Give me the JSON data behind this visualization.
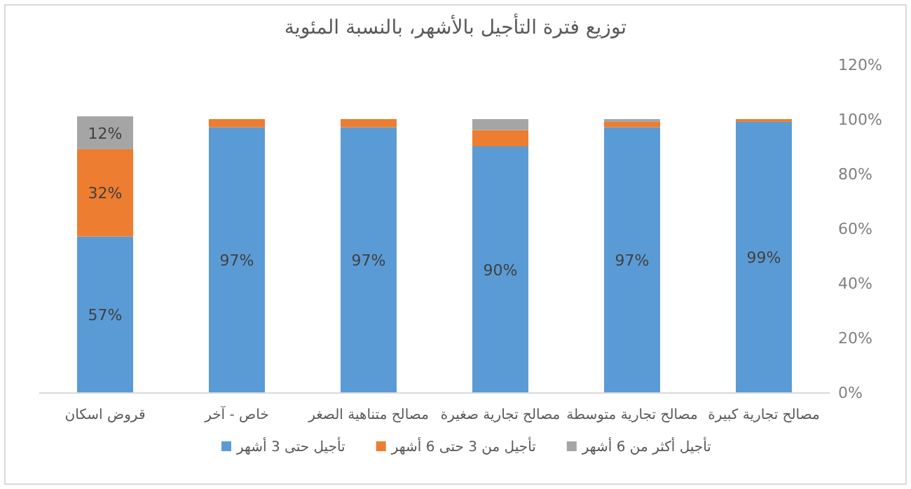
{
  "chart_data": {
    "type": "bar",
    "stacked": true,
    "title": "توزيع فترة التأجيل بالأشهر، بالنسبة المئوية",
    "categories": [
      "قروض اسكان",
      "خاص - آخر",
      "مصالح متناهية الصغر",
      "مصالح تجارية صغيرة",
      "مصالح تجارية متوسطة",
      "مصالح تجارية كبيرة"
    ],
    "series": [
      {
        "name": "تأجيل حتى 3 أشهر",
        "color": "#5b9bd5",
        "values": [
          57,
          97,
          97,
          90,
          97,
          99
        ],
        "value_labels": [
          "57%",
          "97%",
          "97%",
          "90%",
          "97%",
          "99%"
        ]
      },
      {
        "name": "تأجيل من 3 حتى 6 أشهر",
        "color": "#ed7d31",
        "values": [
          32,
          3,
          3,
          6,
          2,
          1
        ],
        "value_labels": [
          "32%",
          null,
          null,
          null,
          null,
          null
        ]
      },
      {
        "name": "تأجيل أكثر من 6 أشهر",
        "color": "#a5a5a5",
        "values": [
          12,
          0,
          0,
          4,
          1,
          0
        ],
        "value_labels": [
          "12%",
          null,
          null,
          null,
          null,
          null
        ]
      }
    ],
    "ylim": [
      0,
      120
    ],
    "yticks": [
      {
        "value": 0,
        "label": "0%"
      },
      {
        "value": 20,
        "label": "20%"
      },
      {
        "value": 40,
        "label": "40%"
      },
      {
        "value": 60,
        "label": "60%"
      },
      {
        "value": 80,
        "label": "80%"
      },
      {
        "value": 100,
        "label": "100%"
      },
      {
        "value": 120,
        "label": "120%"
      }
    ],
    "legend": "bottom"
  }
}
